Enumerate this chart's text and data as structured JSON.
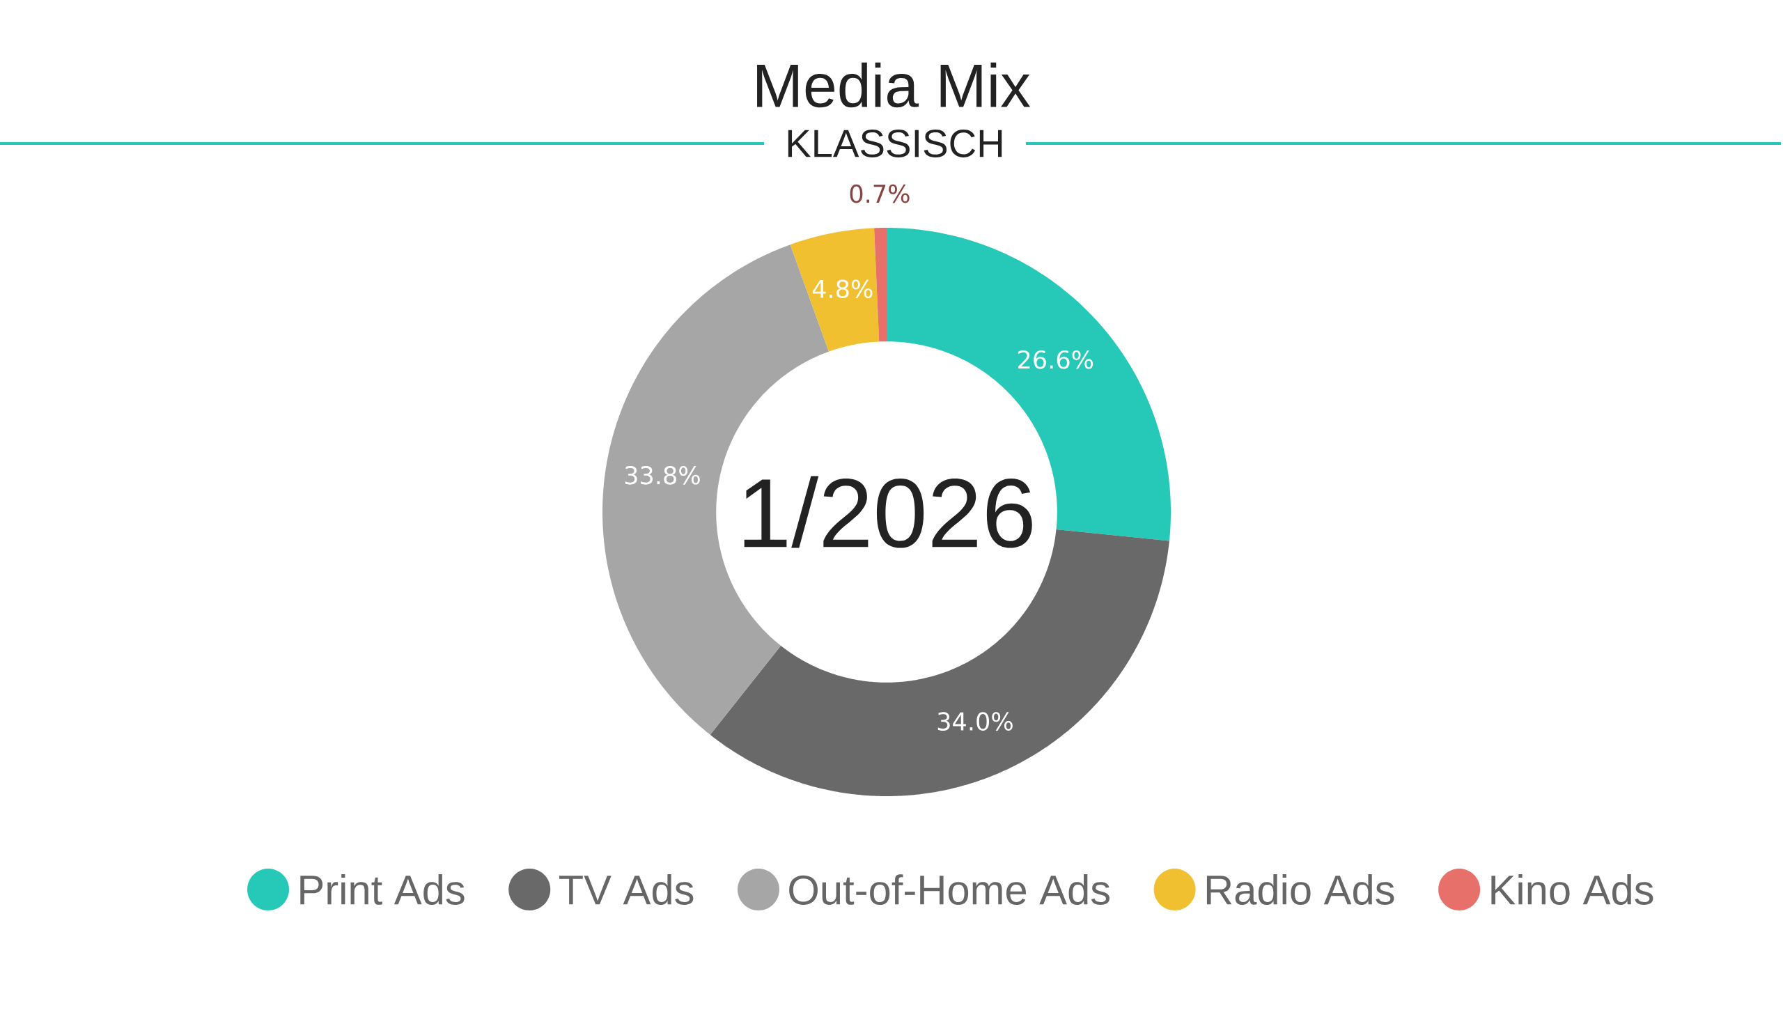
{
  "chart_data": {
    "type": "donut",
    "title": "Media Mix",
    "subtitle": "KLASSISCH",
    "categories": [
      "Print Ads",
      "TV Ads",
      "Out-of-Home Ads",
      "Radio Ads",
      "Kino Ads"
    ],
    "values": [
      26.6,
      34.0,
      33.8,
      4.8,
      0.7
    ],
    "colors": [
      "#26c9b8",
      "#696969",
      "#a6a6a6",
      "#f0c030",
      "#e8706a"
    ],
    "value_labels": [
      "26.6%",
      "34.0%",
      "33.8%",
      "4.8%",
      "0.7%"
    ],
    "annotations": [
      "1/2026"
    ],
    "legend": "bottom"
  }
}
